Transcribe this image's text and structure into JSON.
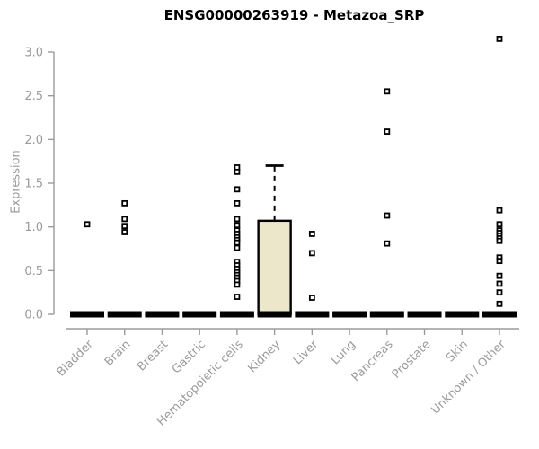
{
  "chart_data": {
    "type": "boxplot",
    "title": "ENSG00000263919 - Metazoa_SRP",
    "ylabel": "Expression",
    "xlabel": "",
    "ylim": [
      0.0,
      3.15
    ],
    "yticks": [
      0.0,
      0.5,
      1.0,
      1.5,
      2.0,
      2.5,
      3.0
    ],
    "grid": false,
    "legend": null,
    "categories": [
      "Bladder",
      "Brain",
      "Breast",
      "Gastric",
      "Hematopoietic cells",
      "Kidney",
      "Liver",
      "Lung",
      "Pancreas",
      "Prostate",
      "Skin",
      "Unknown / Other"
    ],
    "boxes": [
      {
        "category": "Bladder",
        "q1": 0,
        "median": 0,
        "q3": 0,
        "whisker_low": 0,
        "whisker_high": 0,
        "filled": false,
        "outliers": [
          1.03
        ]
      },
      {
        "category": "Brain",
        "q1": 0,
        "median": 0,
        "q3": 0,
        "whisker_low": 0,
        "whisker_high": 0,
        "filled": false,
        "outliers": [
          1.27,
          1.09,
          1.01,
          0.94
        ]
      },
      {
        "category": "Breast",
        "q1": 0,
        "median": 0,
        "q3": 0,
        "whisker_low": 0,
        "whisker_high": 0,
        "filled": false,
        "outliers": []
      },
      {
        "category": "Gastric",
        "q1": 0,
        "median": 0,
        "q3": 0,
        "whisker_low": 0,
        "whisker_high": 0,
        "filled": false,
        "outliers": []
      },
      {
        "category": "Hematopoietic cells",
        "q1": 0,
        "median": 0,
        "q3": 0,
        "whisker_low": 0,
        "whisker_high": 0,
        "filled": false,
        "outliers": [
          1.68,
          1.63,
          1.43,
          1.27,
          1.09,
          1.02,
          0.96,
          0.92,
          0.88,
          0.85,
          0.82,
          0.76,
          0.6,
          0.56,
          0.52,
          0.48,
          0.45,
          0.42,
          0.38,
          0.34,
          0.2
        ]
      },
      {
        "category": "Kidney",
        "q1": 0,
        "median": 0,
        "q3": 1.07,
        "whisker_low": 0,
        "whisker_high": 1.7,
        "filled": true,
        "outliers": []
      },
      {
        "category": "Liver",
        "q1": 0,
        "median": 0,
        "q3": 0,
        "whisker_low": 0,
        "whisker_high": 0,
        "filled": false,
        "outliers": [
          0.92,
          0.7,
          0.19
        ]
      },
      {
        "category": "Lung",
        "q1": 0,
        "median": 0,
        "q3": 0,
        "whisker_low": 0,
        "whisker_high": 0,
        "filled": false,
        "outliers": []
      },
      {
        "category": "Pancreas",
        "q1": 0,
        "median": 0,
        "q3": 0,
        "whisker_low": 0,
        "whisker_high": 0,
        "filled": false,
        "outliers": [
          2.55,
          2.09,
          1.13,
          0.81
        ]
      },
      {
        "category": "Prostate",
        "q1": 0,
        "median": 0,
        "q3": 0,
        "whisker_low": 0,
        "whisker_high": 0,
        "filled": false,
        "outliers": []
      },
      {
        "category": "Skin",
        "q1": 0,
        "median": 0,
        "q3": 0,
        "whisker_low": 0,
        "whisker_high": 0,
        "filled": false,
        "outliers": []
      },
      {
        "category": "Unknown / Other",
        "q1": 0,
        "median": 0,
        "q3": 0,
        "whisker_low": 0,
        "whisker_high": 0,
        "filled": false,
        "outliers": [
          3.15,
          1.19,
          1.03,
          0.96,
          0.93,
          0.9,
          0.87,
          0.84,
          0.65,
          0.61,
          0.44,
          0.35,
          0.25,
          0.12
        ]
      }
    ],
    "colors": {
      "box_fill": "#ece7cb",
      "box_stroke": "#000000",
      "median": "#000000",
      "whisker": "#000000",
      "outlier_fill": "#ffffff",
      "outlier_stroke": "#000000",
      "axis": "#9b9b9b",
      "tick_text": "#9b9b9b",
      "title": "#000000"
    }
  }
}
